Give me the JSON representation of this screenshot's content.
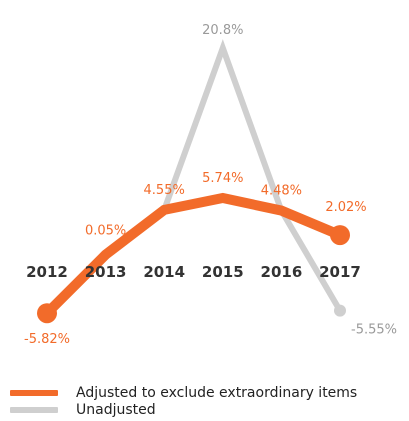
{
  "chart_data": {
    "type": "line",
    "categories": [
      "2012",
      "2013",
      "2014",
      "2015",
      "2016",
      "2017"
    ],
    "series": [
      {
        "name": "Adjusted to exclude extraordinary items",
        "values": [
          -5.82,
          0.05,
          4.55,
          5.74,
          4.48,
          2.02
        ],
        "labels": [
          "-5.82%",
          "0.05%",
          "4.55%",
          "5.74%",
          "4.48%",
          "2.02%"
        ],
        "color": "#F26B2A"
      },
      {
        "name": "Unadjusted",
        "values": [
          null,
          null,
          4.55,
          20.8,
          4.48,
          -5.55
        ],
        "labels": [
          "",
          "",
          "",
          "20.8%",
          "",
          "-5.55%"
        ],
        "color": "#CFCFCF"
      }
    ],
    "ylim": [
      -7,
      22
    ],
    "grid": false,
    "legend": "bottom-left",
    "category_label_color": "#333333"
  }
}
